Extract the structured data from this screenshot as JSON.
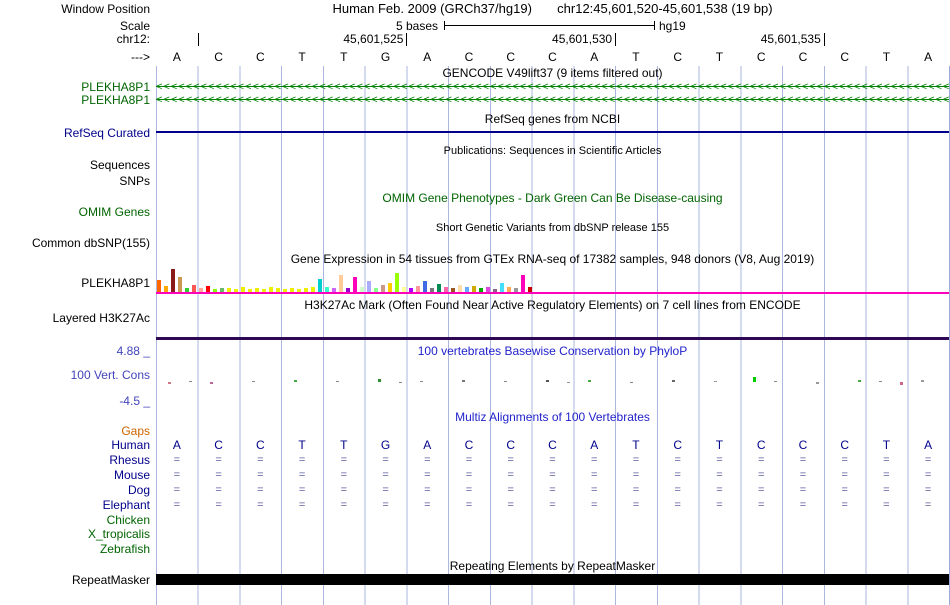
{
  "meta": {
    "assembly_line": "Human Feb. 2009 (GRCh37/hg19)",
    "position_line": "chr12:45,601,520-45,601,538 (19 bp)",
    "scale_text": "5 bases",
    "scale_genome": "hg19",
    "window_position_label": "Window Position",
    "scale_label": "Scale",
    "chrom_label": "chr12:",
    "strand_label": "--->"
  },
  "ruler": {
    "ticks": [
      {
        "offset": 1,
        "label": ""
      },
      {
        "offset": 6,
        "label": "45,601,525"
      },
      {
        "offset": 11,
        "label": "45,601,530"
      },
      {
        "offset": 16,
        "label": "45,601,535"
      }
    ]
  },
  "sequence": [
    "A",
    "C",
    "C",
    "T",
    "T",
    "G",
    "A",
    "C",
    "C",
    "C",
    "A",
    "T",
    "C",
    "T",
    "C",
    "C",
    "C",
    "T",
    "A"
  ],
  "tracks": {
    "gencode": {
      "header": "GENCODE V49lift37 (9 items filtered out)",
      "genes": [
        {
          "name": "PLEKHA8P1"
        },
        {
          "name": "PLEKHA8P1"
        }
      ],
      "strand_glyph": "<"
    },
    "refseq": {
      "header": "RefSeq genes from NCBI",
      "label": "RefSeq Curated"
    },
    "publications": {
      "header": "Publications: Sequences in Scientific Articles",
      "label": "Sequences"
    },
    "snps": {
      "label": "SNPs"
    },
    "omim": {
      "header": "OMIM Gene Phenotypes - Dark Green Can Be Disease-causing",
      "label": "OMIM Genes"
    },
    "dbsnp": {
      "header": "Short Genetic Variants from dbSNP release 155",
      "label": "Common dbSNP(155)"
    },
    "gtex": {
      "header": "Gene Expression in 54 tissues from GTEx RNA-seq of 17382 samples, 948 donors (V8, Aug 2019)",
      "label": "PLEKHA8P1"
    },
    "h3k27ac": {
      "header": "H3K27Ac Mark (Often Found Near Active Regulatory Elements) on 7 cell lines from ENCODE",
      "label": "Layered H3K27Ac"
    },
    "phylop": {
      "header": "100 vertebrates Basewise Conservation by PhyloP",
      "label": "100 Vert. Cons",
      "scale_max": "4.88 _",
      "scale_min": "-4.5 _"
    },
    "multiz": {
      "header": "Multiz Alignments of 100 Vertebrates",
      "eq_glyph": "=",
      "rows": [
        {
          "name": "Gaps",
          "type": "gaps"
        },
        {
          "name": "Human",
          "type": "seq"
        },
        {
          "name": "Rhesus",
          "type": "eq"
        },
        {
          "name": "Mouse",
          "type": "eq"
        },
        {
          "name": "Dog",
          "type": "eq"
        },
        {
          "name": "Elephant",
          "type": "eq"
        },
        {
          "name": "Chicken",
          "type": "none"
        },
        {
          "name": "X_tropicalis",
          "type": "none"
        },
        {
          "name": "Zebrafish",
          "type": "none"
        }
      ]
    },
    "repeatmasker": {
      "header": "Repeating Elements by RepeatMasker",
      "label": "RepeatMasker"
    }
  },
  "chart_data": {
    "gtex": {
      "type": "bar",
      "title": "Gene Expression in 54 tissues from GTEx RNA-seq (PLEKHA8P1)",
      "bars": [
        [
          "#ff6600",
          12
        ],
        [
          "#ffaa00",
          6
        ],
        [
          "#8b1a1a",
          23
        ],
        [
          "#cc9955",
          15
        ],
        [
          "#33cc33",
          4
        ],
        [
          "#ff5555",
          7
        ],
        [
          "#ffaa99",
          4
        ],
        [
          "#ff0000",
          6
        ],
        [
          "#7fff00",
          3
        ],
        [
          "#66bb66",
          4
        ],
        [
          "#eeee00",
          4
        ],
        [
          "#eeee00",
          3
        ],
        [
          "#eeee00",
          5
        ],
        [
          "#eeee00",
          3
        ],
        [
          "#eeee00",
          4
        ],
        [
          "#eeee00",
          3
        ],
        [
          "#eeee00",
          5
        ],
        [
          "#eeee00",
          4
        ],
        [
          "#eeee00",
          3
        ],
        [
          "#eeee00",
          4
        ],
        [
          "#eeee00",
          3
        ],
        [
          "#eeee00",
          4
        ],
        [
          "#eeee00",
          5
        ],
        [
          "#00cdcd",
          13
        ],
        [
          "#33ffcc",
          5
        ],
        [
          "#cc66ff",
          4
        ],
        [
          "#ffcc99",
          17
        ],
        [
          "#9900cc",
          4
        ],
        [
          "#ff00bb",
          15
        ],
        [
          "#ccffcc",
          5
        ],
        [
          "#aaaaff",
          11
        ],
        [
          "#88ff88",
          4
        ],
        [
          "#cc9988",
          7
        ],
        [
          "#ffcc00",
          9
        ],
        [
          "#99ff00",
          19
        ],
        [
          "#ffff99",
          5
        ],
        [
          "#aa00ff",
          4
        ],
        [
          "#ff9999",
          6
        ],
        [
          "#4169e1",
          11
        ],
        [
          "#777777",
          4
        ],
        [
          "#008855",
          8
        ],
        [
          "#ff66aa",
          5
        ],
        [
          "#995522",
          4
        ],
        [
          "#ffddaa",
          7
        ],
        [
          "#66aaff",
          5
        ],
        [
          "#ccaa00",
          6
        ],
        [
          "#00aa00",
          4
        ],
        [
          "#dd44dd",
          5
        ],
        [
          "#886688",
          3
        ],
        [
          "#44ddff",
          9
        ],
        [
          "#ffaa55",
          5
        ],
        [
          "#999999",
          4
        ],
        [
          "#ff00bb",
          17
        ],
        [
          "#cc0000",
          5
        ]
      ]
    },
    "phylop": {
      "type": "scatter",
      "title": "100 vertebrates Basewise Conservation by PhyloP",
      "ylim": [
        -4.5,
        4.88
      ],
      "marks": [
        [
          12,
          2,
          -1,
          "#cc7788"
        ],
        [
          33,
          1,
          1,
          "#888888"
        ],
        [
          54,
          2,
          -1,
          "#bb6699"
        ],
        [
          96,
          1,
          1,
          "#888888"
        ],
        [
          138,
          2,
          1,
          "#44aa44"
        ],
        [
          180,
          1,
          1,
          "#888888"
        ],
        [
          222,
          3,
          1,
          "#2f8f2f"
        ],
        [
          243,
          1,
          -1,
          "#888888"
        ],
        [
          264,
          1,
          1,
          "#888888"
        ],
        [
          306,
          2,
          1,
          "#777777"
        ],
        [
          348,
          1,
          1,
          "#888888"
        ],
        [
          390,
          2,
          1,
          "#555555"
        ],
        [
          411,
          1,
          -1,
          "#999999"
        ],
        [
          432,
          2,
          1,
          "#44aa44"
        ],
        [
          474,
          1,
          -1,
          "#888888"
        ],
        [
          516,
          2,
          1,
          "#666666"
        ],
        [
          558,
          1,
          1,
          "#999999"
        ],
        [
          597,
          5,
          1,
          "#00cc00"
        ],
        [
          618,
          1,
          1,
          "#888888"
        ],
        [
          660,
          2,
          -1,
          "#999999"
        ],
        [
          702,
          2,
          1,
          "#44aa44"
        ],
        [
          723,
          1,
          1,
          "#888888"
        ],
        [
          744,
          3,
          -1,
          "#cc6688"
        ],
        [
          765,
          2,
          1,
          "#999999"
        ]
      ]
    }
  },
  "colors": {
    "gene_green": "#006400",
    "navy": "#00008b",
    "header_blue": "#2222cc",
    "cons_blue": "#4444bb",
    "gaps_orange": "#cc6600",
    "gtex_line_magenta": "#ff00bb",
    "h3k27ac_line_purple": "#2e0854",
    "grid_blue": "#96a5d7",
    "repeat_black": "#000000"
  }
}
